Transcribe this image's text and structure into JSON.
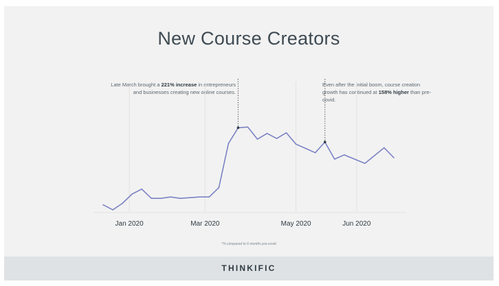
{
  "title": "New Course Creators",
  "annotations": {
    "left": {
      "pre": "Late March brought a ",
      "bold": "221% increase",
      "post": " in entrepreneurs and businesses creating new online courses."
    },
    "right": {
      "pre": "Even after the initial boom, course creation growth has continued at ",
      "bold": "158% higher",
      "post": " than pre-covid."
    }
  },
  "footnote": "*% compared to 6 months pre-covid",
  "brand": "THINKIFIC",
  "colors": {
    "line": "#7b82c4",
    "grid": "#e3e3e3",
    "text": "#2f3a42",
    "background": "#f2f2f2",
    "footer": "#dee2e4"
  },
  "chart_data": {
    "type": "line",
    "title": "New Course Creators",
    "x_ticks": [
      "Jan 2020",
      "Mar 2020",
      "May 2020",
      "Jun 2020"
    ],
    "y_axis_visible": false,
    "grid": "vertical-only",
    "series": [
      {
        "values": [
          [
            "2019-12-27",
            10
          ],
          [
            "2020-01-03",
            3
          ],
          [
            "2020-01-10",
            12
          ],
          [
            "2020-01-17",
            25
          ],
          [
            "2020-01-24",
            32
          ],
          [
            "2020-01-31",
            19
          ],
          [
            "2020-02-07",
            19
          ],
          [
            "2020-02-14",
            21
          ],
          [
            "2020-02-21",
            19
          ],
          [
            "2020-02-28",
            20
          ],
          [
            "2020-03-06",
            21
          ],
          [
            "2020-03-13",
            21
          ],
          [
            "2020-03-20",
            34
          ],
          [
            "2020-03-27",
            96
          ],
          [
            "2020-04-03",
            118
          ],
          [
            "2020-04-10",
            119
          ],
          [
            "2020-04-17",
            102
          ],
          [
            "2020-04-24",
            110
          ],
          [
            "2020-05-01",
            103
          ],
          [
            "2020-05-08",
            111
          ],
          [
            "2020-05-15",
            95
          ],
          [
            "2020-05-22",
            89
          ],
          [
            "2020-05-29",
            83
          ],
          [
            "2020-06-05",
            98
          ],
          [
            "2020-06-12",
            74
          ],
          [
            "2020-06-19",
            80
          ],
          [
            "2020-07-04",
            68
          ],
          [
            "2020-07-18",
            90
          ],
          [
            "2020-07-25",
            76
          ]
        ]
      }
    ],
    "highlight_points": [
      [
        "2020-04-03",
        118
      ],
      [
        "2020-06-05",
        98
      ]
    ]
  }
}
